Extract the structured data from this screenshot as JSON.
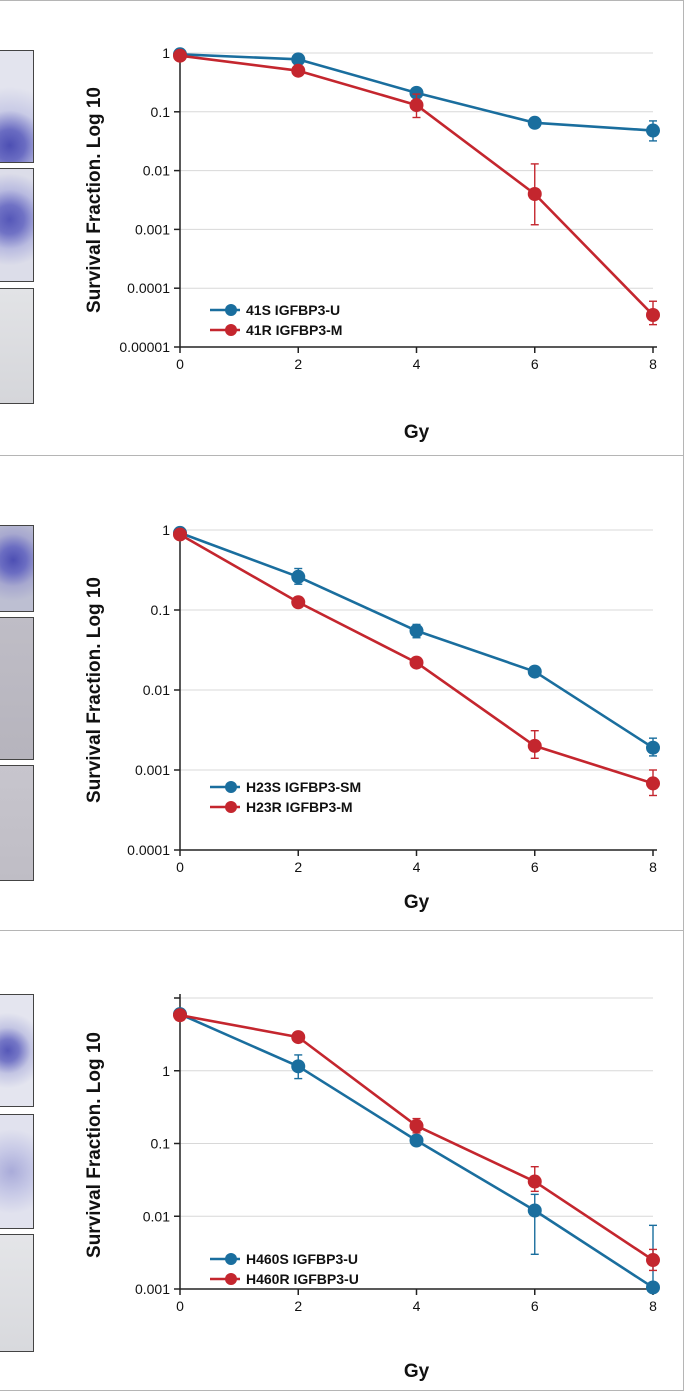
{
  "colors": {
    "series_blue": "#1a6e9e",
    "series_red": "#c4262e",
    "grid": "#d8d8d8",
    "axis": "#222222"
  },
  "chart_data": [
    {
      "type": "line",
      "title": "",
      "xlabel": "Gy",
      "ylabel": "Survival Fraction. Log 10",
      "yscale": "log",
      "xlim": [
        0,
        8
      ],
      "ylim": [
        1e-05,
        1
      ],
      "xticks": [
        "0",
        "2",
        "4",
        "6",
        "8"
      ],
      "yticks": [
        {
          "value": 1,
          "label": "1"
        },
        {
          "value": 0.1,
          "label": "0.1"
        },
        {
          "value": 0.01,
          "label": "0.01"
        },
        {
          "value": 0.001,
          "label": "0.001"
        },
        {
          "value": 0.0001,
          "label": "0.0001"
        },
        {
          "value": 1e-05,
          "label": "0.00001"
        }
      ],
      "grid": true,
      "legend": "lower-left",
      "x": [
        0,
        2,
        4,
        6,
        8
      ],
      "series": [
        {
          "name": "41S IGFBP3-U",
          "color": "#1a6e9e",
          "values": [
            0.95,
            0.78,
            0.21,
            0.065,
            0.048
          ],
          "error_low": [
            0.95,
            0.78,
            0.21,
            0.055,
            0.032
          ],
          "error_high": [
            0.95,
            0.78,
            0.21,
            0.078,
            0.07
          ]
        },
        {
          "name": "41R IGFBP3-M",
          "color": "#c4262e",
          "values": [
            0.9,
            0.5,
            0.13,
            0.004,
            3.5e-05
          ],
          "error_low": [
            0.9,
            0.5,
            0.08,
            0.0012,
            2.4e-05
          ],
          "error_high": [
            0.9,
            0.5,
            0.2,
            0.013,
            6e-05
          ]
        }
      ]
    },
    {
      "type": "line",
      "title": "",
      "xlabel": "Gy",
      "ylabel": "Survival Fraction. Log 10",
      "yscale": "log",
      "xlim": [
        0,
        8
      ],
      "ylim": [
        0.0001,
        1
      ],
      "xticks": [
        "0",
        "2",
        "4",
        "6",
        "8"
      ],
      "yticks": [
        {
          "value": 1,
          "label": "1"
        },
        {
          "value": 0.1,
          "label": "0.1"
        },
        {
          "value": 0.01,
          "label": "0.01"
        },
        {
          "value": 0.001,
          "label": "0.001"
        },
        {
          "value": 0.0001,
          "label": "0.0001"
        }
      ],
      "grid": true,
      "legend": "lower-left",
      "x": [
        0,
        2,
        4,
        6,
        8
      ],
      "series": [
        {
          "name": "H23S IGFBP3-SM",
          "color": "#1a6e9e",
          "values": [
            0.92,
            0.26,
            0.055,
            0.017,
            0.0019
          ],
          "error_low": [
            0.92,
            0.21,
            0.045,
            0.017,
            0.0015
          ],
          "error_high": [
            0.92,
            0.33,
            0.066,
            0.017,
            0.0025
          ]
        },
        {
          "name": "H23R IGFBP3-M",
          "color": "#c4262e",
          "values": [
            0.88,
            0.125,
            0.022,
            0.002,
            0.00068
          ],
          "error_low": [
            0.88,
            0.11,
            0.022,
            0.0014,
            0.00048
          ],
          "error_high": [
            0.88,
            0.145,
            0.022,
            0.0031,
            0.001
          ]
        }
      ]
    },
    {
      "type": "line",
      "title": "",
      "xlabel": "Gy",
      "ylabel": "Survival Fraction. Log 10",
      "yscale": "log",
      "xlim": [
        0,
        8
      ],
      "ylim": [
        0.001,
        10
      ],
      "xticks": [
        "0",
        "2",
        "4",
        "6",
        "8"
      ],
      "yticks": [
        {
          "value": 10,
          "label": ""
        },
        {
          "value": 1,
          "label": "1"
        },
        {
          "value": 0.1,
          "label": "0.1"
        },
        {
          "value": 0.01,
          "label": "0.01"
        },
        {
          "value": 0.001,
          "label": "0.001"
        }
      ],
      "grid": true,
      "legend": "lower-left",
      "x": [
        0,
        2,
        4,
        6,
        8
      ],
      "series": [
        {
          "name": "H460S IGFBP3-U",
          "color": "#1a6e9e",
          "values": [
            6.0,
            1.15,
            0.11,
            0.012,
            0.00105
          ],
          "error_low": [
            6.0,
            0.78,
            0.11,
            0.003,
            0.00105
          ],
          "error_high": [
            6.0,
            1.65,
            0.11,
            0.02,
            0.0075
          ]
        },
        {
          "name": "H460R IGFBP3-U",
          "color": "#c4262e",
          "values": [
            5.8,
            2.9,
            0.175,
            0.03,
            0.0025
          ],
          "error_low": [
            5.8,
            2.9,
            0.14,
            0.022,
            0.0018
          ],
          "error_high": [
            5.8,
            2.9,
            0.22,
            0.048,
            0.0035
          ]
        }
      ]
    }
  ]
}
